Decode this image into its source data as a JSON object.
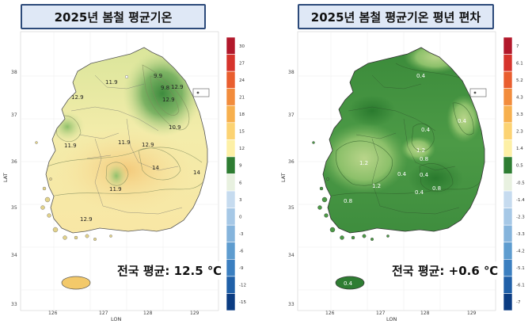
{
  "panels": [
    {
      "id": "absolute",
      "title": "2025년 봄철 평균기온",
      "national_average": "전국 평균: 12.5 ℃",
      "x_axis_label": "LON",
      "y_axis_label": "LAT",
      "lon_ticks": [
        "126",
        "127",
        "128",
        "129"
      ],
      "lat_ticks": [
        "33",
        "34",
        "35",
        "36",
        "37",
        "38"
      ],
      "contour_labels": [
        "9.9",
        "12.9",
        "11.9",
        "12.9",
        "10.9",
        "11.9",
        "12.9",
        "14",
        "11.9",
        "12.9",
        "11.9",
        "14",
        "12.9",
        "9.8"
      ],
      "legend_labels": [
        "30",
        "27",
        "24",
        "21",
        "18",
        "15",
        "12",
        "9",
        "6",
        "3",
        "0",
        "-3",
        "-6",
        "-9",
        "-12",
        "-15"
      ],
      "legend_colors": [
        "#b2182b",
        "#d6342c",
        "#e95e2f",
        "#f28c3c",
        "#f7b04e",
        "#fcd373",
        "#fdf0a6",
        "#2e7d32",
        "#e8f1e0",
        "#c6dbef",
        "#a6c8e6",
        "#85b4dc",
        "#5e9ccf",
        "#3b7fc0",
        "#2060a8",
        "#0b3c82"
      ]
    },
    {
      "id": "anomaly",
      "title": "2025년 봄철 평균기온 평년 편차",
      "national_average": "전국 평균: +0.6 ℃",
      "x_axis_label": "LON",
      "y_axis_label": "LAT",
      "lon_ticks": [
        "126",
        "127",
        "128",
        "129"
      ],
      "lat_ticks": [
        "33",
        "34",
        "35",
        "36",
        "37",
        "38"
      ],
      "contour_labels": [
        "0.4",
        "0.4",
        "0.4",
        "1.2",
        "0.8",
        "1.2",
        "0.4",
        "0.4",
        "0.8",
        "0.4",
        "1.2",
        "0.8",
        "0.4"
      ],
      "legend_labels": [
        "7",
        "6.1",
        "5.2",
        "4.3",
        "3.3",
        "2.3",
        "1.4",
        "0.5",
        "-0.5",
        "-1.4",
        "-2.3",
        "-3.3",
        "-4.2",
        "-5.1",
        "-6.1",
        "-7"
      ],
      "legend_colors": [
        "#b2182b",
        "#d6342c",
        "#e95e2f",
        "#f28c3c",
        "#f7b04e",
        "#fcd373",
        "#fdf0a6",
        "#2e7d32",
        "#e8f1e0",
        "#c6dbef",
        "#a6c8e6",
        "#85b4dc",
        "#5e9ccf",
        "#3b7fc0",
        "#2060a8",
        "#0b3c82"
      ]
    }
  ]
}
